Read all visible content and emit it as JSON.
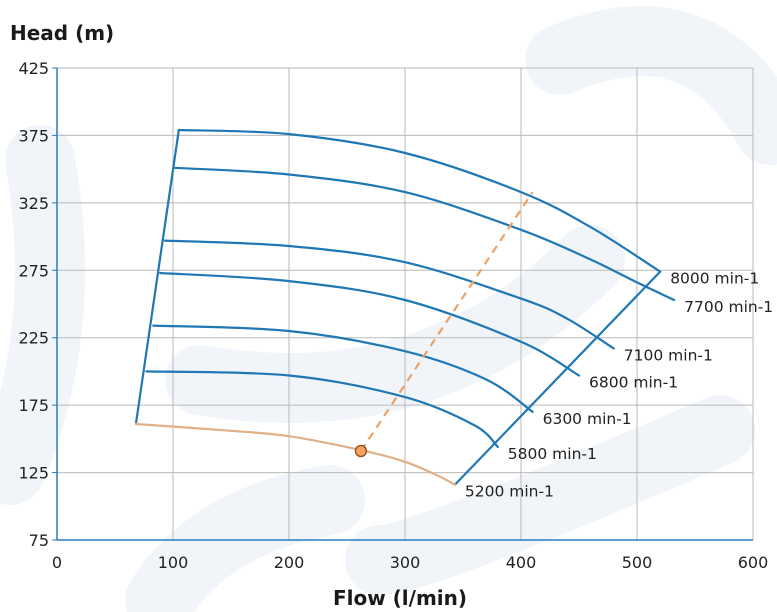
{
  "chart_data": {
    "type": "line",
    "ylabel": "Head (m)",
    "xlabel": "Flow (l/min)",
    "xlim": [
      0,
      600
    ],
    "ylim": [
      75,
      425
    ],
    "x_ticks": [
      "0",
      "100",
      "200",
      "300",
      "400",
      "500",
      "600"
    ],
    "y_ticks": [
      "75",
      "125",
      "175",
      "225",
      "275",
      "325",
      "375",
      "425"
    ],
    "grid": true,
    "colors": {
      "curve": "#1f78b4",
      "highlight_curve": "#e0b088",
      "operating_line": "#f0a060",
      "operating_point_fill": "#f4a460",
      "watermark": "#e6ecf6"
    },
    "series": [
      {
        "name": "8000 min-1",
        "highlight": false,
        "points": [
          [
            105,
            379
          ],
          [
            200,
            376
          ],
          [
            300,
            362
          ],
          [
            400,
            333
          ],
          [
            460,
            307
          ],
          [
            520,
            274
          ]
        ]
      },
      {
        "name": "7700 min-1",
        "highlight": false,
        "points": [
          [
            101,
            351
          ],
          [
            200,
            346
          ],
          [
            300,
            333
          ],
          [
            400,
            305
          ],
          [
            460,
            283
          ],
          [
            500,
            266
          ],
          [
            532,
            253
          ]
        ]
      },
      {
        "name": "7100 min-1",
        "highlight": false,
        "points": [
          [
            93,
            297
          ],
          [
            200,
            293
          ],
          [
            300,
            281
          ],
          [
            400,
            254
          ],
          [
            440,
            239
          ],
          [
            480,
            217
          ]
        ]
      },
      {
        "name": "6800 min-1",
        "highlight": false,
        "points": [
          [
            89,
            273
          ],
          [
            200,
            267
          ],
          [
            300,
            253
          ],
          [
            400,
            222
          ],
          [
            450,
            197
          ]
        ]
      },
      {
        "name": "6300 min-1",
        "highlight": false,
        "points": [
          [
            83,
            234
          ],
          [
            200,
            230
          ],
          [
            300,
            215
          ],
          [
            370,
            194
          ],
          [
            410,
            170
          ]
        ]
      },
      {
        "name": "5800 min-1",
        "highlight": false,
        "points": [
          [
            77,
            200
          ],
          [
            200,
            197
          ],
          [
            300,
            181
          ],
          [
            360,
            160
          ],
          [
            380,
            144
          ]
        ]
      },
      {
        "name": "5200 min-1",
        "highlight": true,
        "points": [
          [
            68,
            161
          ],
          [
            150,
            156
          ],
          [
            200,
            152
          ],
          [
            260,
            142
          ],
          [
            300,
            133
          ],
          [
            330,
            122
          ],
          [
            343,
            116
          ]
        ]
      }
    ],
    "envelope": {
      "left_boundary": [
        [
          68,
          161
        ],
        [
          105,
          379
        ]
      ],
      "right_boundary": [
        [
          343,
          116
        ],
        [
          520,
          274
        ]
      ]
    },
    "operating_line": [
      [
        262,
        141
      ],
      [
        410,
        333
      ]
    ],
    "operating_point": [
      262,
      141
    ]
  }
}
